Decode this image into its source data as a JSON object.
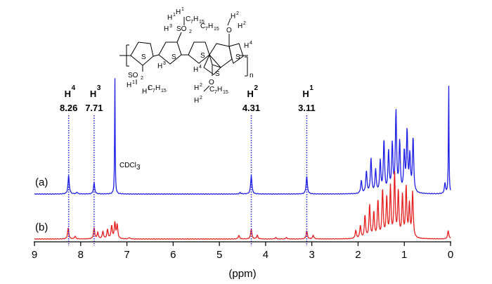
{
  "chart_data": {
    "type": "line",
    "title": "",
    "xlabel": "(ppm)",
    "ylabel": "",
    "xlim": [
      9,
      0
    ],
    "x_reversed": true,
    "x_ticks": [
      "9",
      "8",
      "7",
      "6",
      "5",
      "4",
      "3",
      "2",
      "1",
      "0"
    ],
    "grid": false,
    "series": [
      {
        "name": "(a)",
        "color": "#1f1fe6",
        "baseline": 0,
        "peaks": [
          {
            "ppm": 8.26,
            "height": 0.16
          },
          {
            "ppm": 8.08,
            "height": 0.015
          },
          {
            "ppm": 7.71,
            "height": 0.095
          },
          {
            "ppm": 7.26,
            "height": 1.0
          },
          {
            "ppm": 4.55,
            "height": 0.012
          },
          {
            "ppm": 4.31,
            "height": 0.16
          },
          {
            "ppm": 3.11,
            "height": 0.15
          },
          {
            "ppm": 1.93,
            "height": 0.11
          },
          {
            "ppm": 1.82,
            "height": 0.19
          },
          {
            "ppm": 1.72,
            "height": 0.3
          },
          {
            "ppm": 1.62,
            "height": 0.2
          },
          {
            "ppm": 1.52,
            "height": 0.27
          },
          {
            "ppm": 1.44,
            "height": 0.45
          },
          {
            "ppm": 1.34,
            "height": 0.35
          },
          {
            "ppm": 1.26,
            "height": 0.41
          },
          {
            "ppm": 1.18,
            "height": 0.69
          },
          {
            "ppm": 1.1,
            "height": 0.43
          },
          {
            "ppm": 1.0,
            "height": 0.34
          },
          {
            "ppm": 0.94,
            "height": 0.52
          },
          {
            "ppm": 0.88,
            "height": 0.31
          },
          {
            "ppm": 0.81,
            "height": 0.47
          },
          {
            "ppm": 0.12,
            "height": 0.09
          },
          {
            "ppm": 0.04,
            "height": 1.0
          }
        ]
      },
      {
        "name": "(b)",
        "color": "#e61f1f",
        "baseline": 0,
        "peaks": [
          {
            "ppm": 8.27,
            "height": 0.12
          },
          {
            "ppm": 8.12,
            "height": 0.03
          },
          {
            "ppm": 7.71,
            "height": 0.12
          },
          {
            "ppm": 7.63,
            "height": 0.07
          },
          {
            "ppm": 7.52,
            "height": 0.08
          },
          {
            "ppm": 7.42,
            "height": 0.1
          },
          {
            "ppm": 7.33,
            "height": 0.14
          },
          {
            "ppm": 7.26,
            "height": 0.17
          },
          {
            "ppm": 7.21,
            "height": 0.15
          },
          {
            "ppm": 6.95,
            "height": 0.015
          },
          {
            "ppm": 4.58,
            "height": 0.04
          },
          {
            "ppm": 4.31,
            "height": 0.11
          },
          {
            "ppm": 4.18,
            "height": 0.04
          },
          {
            "ppm": 3.78,
            "height": 0.015
          },
          {
            "ppm": 3.55,
            "height": 0.015
          },
          {
            "ppm": 3.11,
            "height": 0.09
          },
          {
            "ppm": 2.97,
            "height": 0.04
          },
          {
            "ppm": 2.05,
            "height": 0.09
          },
          {
            "ppm": 1.95,
            "height": 0.14
          },
          {
            "ppm": 1.85,
            "height": 0.25
          },
          {
            "ppm": 1.75,
            "height": 0.36
          },
          {
            "ppm": 1.66,
            "height": 0.28
          },
          {
            "ppm": 1.57,
            "height": 0.41
          },
          {
            "ppm": 1.47,
            "height": 0.52
          },
          {
            "ppm": 1.38,
            "height": 0.44
          },
          {
            "ppm": 1.3,
            "height": 0.55
          },
          {
            "ppm": 1.21,
            "height": 0.7
          },
          {
            "ppm": 1.13,
            "height": 0.5
          },
          {
            "ppm": 1.04,
            "height": 0.46
          },
          {
            "ppm": 0.96,
            "height": 0.55
          },
          {
            "ppm": 0.89,
            "height": 0.36
          },
          {
            "ppm": 0.82,
            "height": 0.5
          },
          {
            "ppm": 0.05,
            "height": 0.09
          }
        ]
      }
    ],
    "peak_markers": [
      {
        "ppm": 8.26,
        "shift": "8.26",
        "proton": "4"
      },
      {
        "ppm": 7.71,
        "shift": "7.71",
        "proton": "3"
      },
      {
        "ppm": 4.31,
        "shift": "4.31",
        "proton": "2"
      },
      {
        "ppm": 3.11,
        "shift": "3.11",
        "proton": "1"
      }
    ],
    "annotations": [
      {
        "text": "CDCl",
        "sub": "3",
        "ppm": 7.26
      }
    ],
    "structure": {
      "h_symbol": "H",
      "chain": "C",
      "chain_sub": "7",
      "chain_rest": "H",
      "chain_rest_sub": "15",
      "so2": "SO",
      "so2_sub": "2",
      "o": "O",
      "s": "S",
      "n": "n",
      "labels": {
        "h1": "1",
        "h2": "2",
        "h3": "3",
        "h4": "4"
      }
    }
  }
}
